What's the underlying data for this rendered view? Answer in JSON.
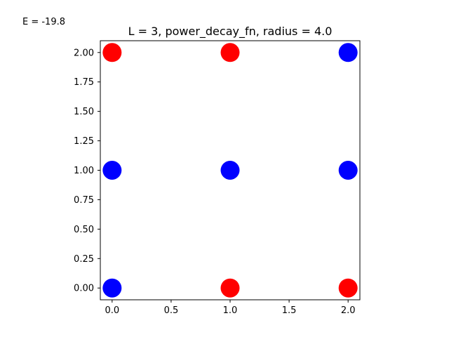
{
  "figure_text": {
    "energy_label": "E = -19.8"
  },
  "chart_data": {
    "type": "scatter",
    "title": "L = 3, power_decay_fn, radius = 4.0",
    "xlabel": "",
    "ylabel": "",
    "xlim": [
      -0.1,
      2.1
    ],
    "ylim": [
      -0.1,
      2.1
    ],
    "grid": false,
    "x_ticks": [
      0.0,
      0.5,
      1.0,
      1.5,
      2.0
    ],
    "x_tick_labels": [
      "0.0",
      "0.5",
      "1.0",
      "1.5",
      "2.0"
    ],
    "y_ticks": [
      0.0,
      0.25,
      0.5,
      0.75,
      1.0,
      1.25,
      1.5,
      1.75,
      2.0
    ],
    "y_tick_labels": [
      "0.00",
      "0.25",
      "0.50",
      "0.75",
      "1.00",
      "1.25",
      "1.50",
      "1.75",
      "2.00"
    ],
    "colors": {
      "red": "#ff0000",
      "blue": "#0000ff"
    },
    "points": [
      {
        "x": 0,
        "y": 2,
        "color": "red"
      },
      {
        "x": 1,
        "y": 2,
        "color": "red"
      },
      {
        "x": 2,
        "y": 2,
        "color": "blue"
      },
      {
        "x": 0,
        "y": 1,
        "color": "blue"
      },
      {
        "x": 1,
        "y": 1,
        "color": "blue"
      },
      {
        "x": 2,
        "y": 1,
        "color": "blue"
      },
      {
        "x": 0,
        "y": 0,
        "color": "blue"
      },
      {
        "x": 1,
        "y": 0,
        "color": "red"
      },
      {
        "x": 2,
        "y": 0,
        "color": "red"
      }
    ]
  }
}
